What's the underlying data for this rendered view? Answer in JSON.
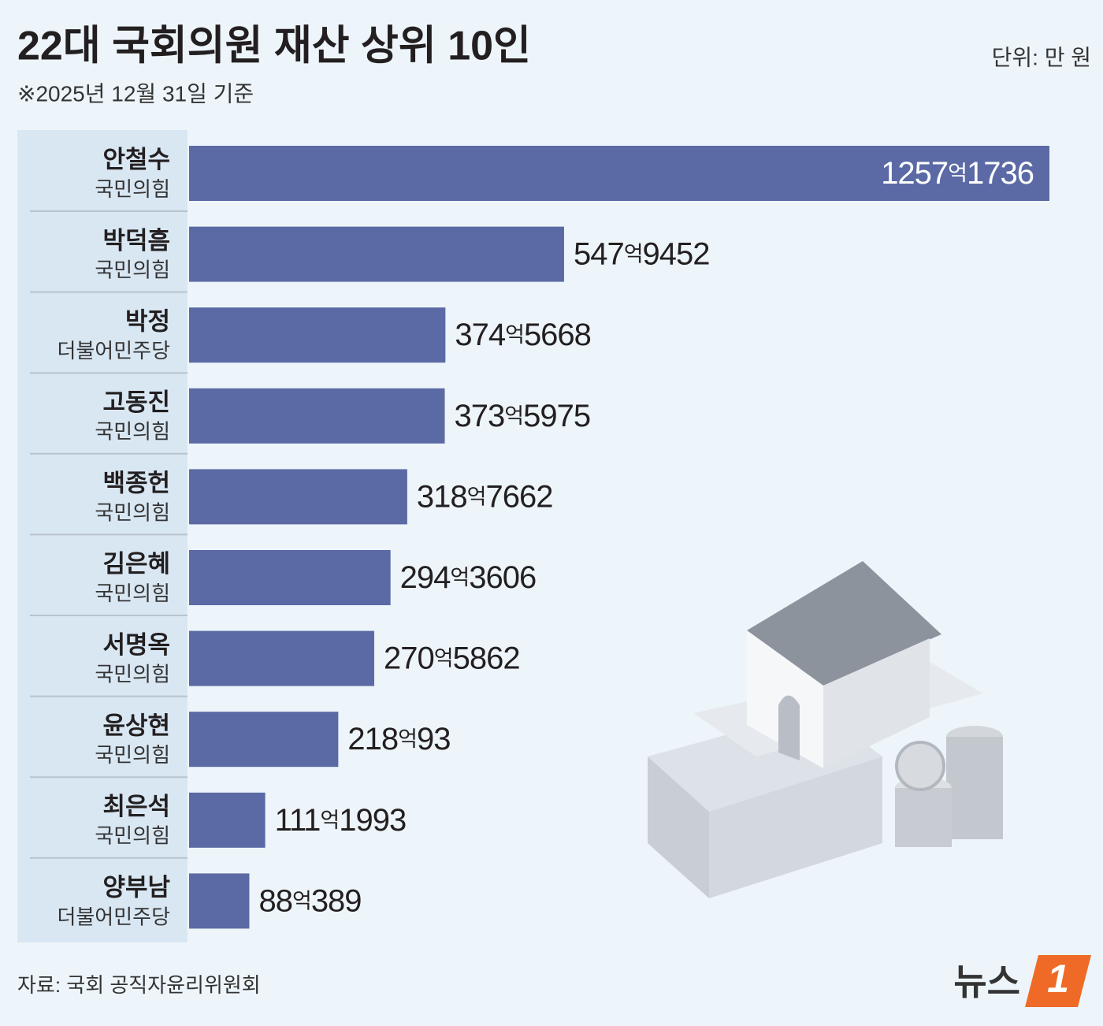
{
  "chart_data": {
    "type": "bar",
    "title": "22대 국회의원 재산 상위 10인",
    "subtitle": "※2025년 12월 31일 기준",
    "unit": "단위: 만 원",
    "source": "자료: 국회 공직자윤리위원회",
    "brand_text": "뉴스",
    "brand_mark": "1",
    "categories": [
      "안철수",
      "박덕흠",
      "박정",
      "고동진",
      "백종헌",
      "김은혜",
      "서명옥",
      "윤상현",
      "최은석",
      "양부남"
    ],
    "parties": [
      "국민의힘",
      "국민의힘",
      "더불어민주당",
      "국민의힘",
      "국민의힘",
      "국민의힘",
      "국민의힘",
      "국민의힘",
      "국민의힘",
      "더불어민주당"
    ],
    "values": [
      12571736,
      5479452,
      3745668,
      3735975,
      3187662,
      2943606,
      2705862,
      2180093,
      1111993,
      880389
    ],
    "value_labels": [
      "1257억1736",
      "547억9452",
      "374억5668",
      "373억5975",
      "318억7662",
      "294억3606",
      "270억5862",
      "218억93",
      "111억1993",
      "88억389"
    ],
    "color": "#5b6aa5"
  }
}
